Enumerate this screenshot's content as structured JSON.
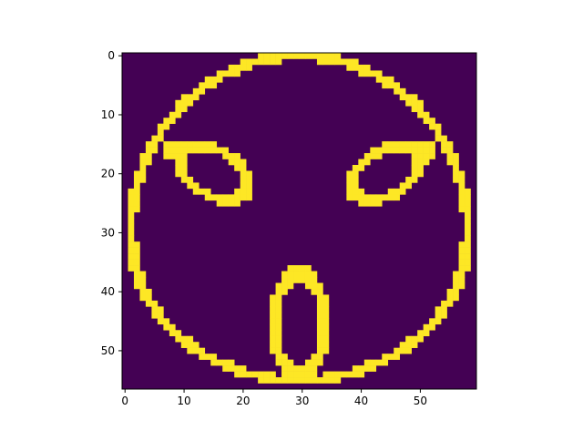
{
  "chart_data": {
    "type": "heatmap",
    "title": "",
    "xlabel": "",
    "ylabel": "",
    "colormap": "viridis",
    "background_color": "#440154",
    "foreground_color": "#fde725",
    "grid_shape": [
      57,
      60
    ],
    "xlim": [
      -0.5,
      59.5
    ],
    "ylim": [
      56.5,
      -0.5
    ],
    "xticks": [
      0,
      10,
      20,
      30,
      40,
      50
    ],
    "yticks": [
      0,
      10,
      20,
      30,
      40,
      50
    ],
    "grid": false,
    "legend": "none",
    "description_layers": {
      "outer_circle": {
        "center": [
          29.5,
          34.0
        ],
        "radius_x": 28.5,
        "radius_y": 21.5,
        "top_y": 0
      },
      "left_eye": {
        "center": [
          15.0,
          19.8
        ],
        "radius_x": 6.3,
        "radius_y": 3.8,
        "tilt_deg": 30
      },
      "right_eye": {
        "center": [
          44.2,
          19.8
        ],
        "radius_x": 6.3,
        "radius_y": 3.8,
        "tilt_deg": -30
      },
      "mouth": {
        "center": [
          29.5,
          45.5
        ],
        "radius_x": 4.3,
        "radius_y": 8.5
      }
    }
  }
}
